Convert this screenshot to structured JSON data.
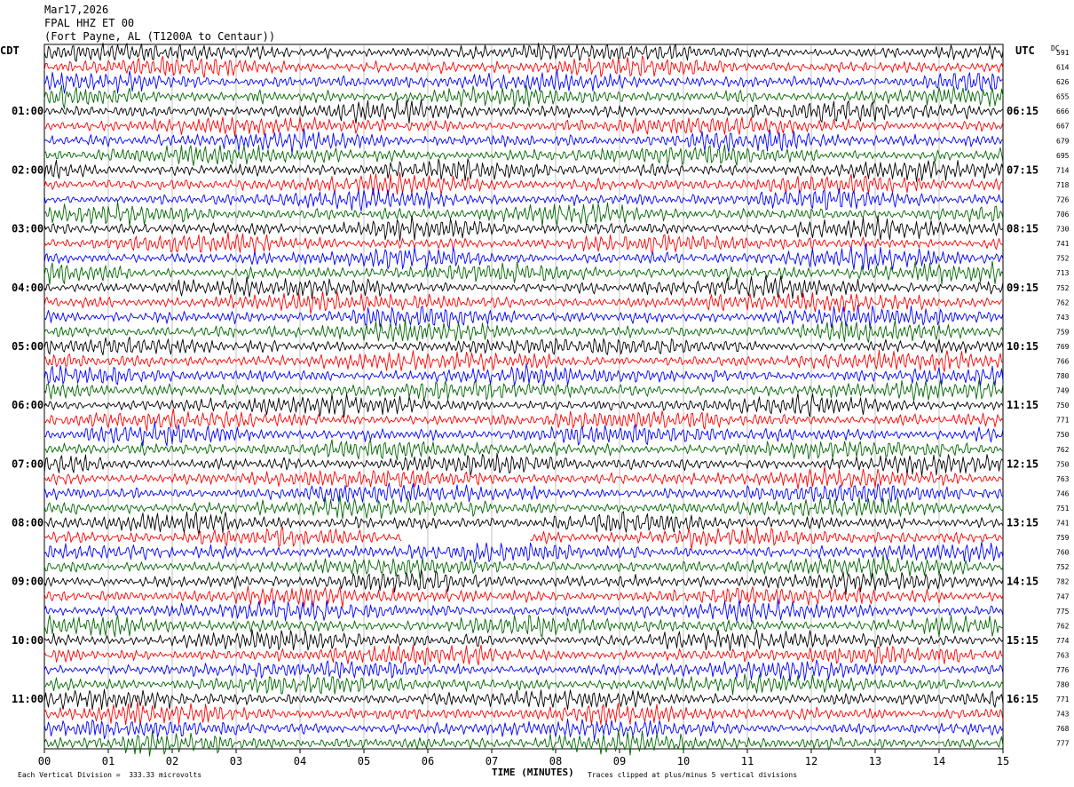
{
  "header": {
    "date": "Mar17,2026",
    "station": "FPAL HHZ ET 00",
    "location": "(Fort Payne, AL (T1200A to Centaur))"
  },
  "left_tz": "CDT",
  "right_tz": "UTC",
  "dc_label": "DC",
  "footer": {
    "scale": "Each Vertical Division =  333.33 microvolts",
    "clip": "Traces clipped at plus/minus 5 vertical divisions"
  },
  "chart_data": {
    "type": "line",
    "title": "",
    "xlabel": "TIME (MINUTES)",
    "xlim": [
      0,
      15
    ],
    "x_ticks": [
      "00",
      "01",
      "02",
      "03",
      "04",
      "05",
      "06",
      "07",
      "08",
      "09",
      "10",
      "11",
      "12",
      "13",
      "14",
      "15"
    ],
    "row_colors": [
      "#000000",
      "#ff0000",
      "#0000ff",
      "#006600"
    ],
    "left_time_labels": [
      {
        "row": 4,
        "label": "01:00"
      },
      {
        "row": 8,
        "label": "02:00"
      },
      {
        "row": 12,
        "label": "03:00"
      },
      {
        "row": 16,
        "label": "04:00"
      },
      {
        "row": 20,
        "label": "05:00"
      },
      {
        "row": 24,
        "label": "06:00"
      },
      {
        "row": 28,
        "label": "07:00"
      },
      {
        "row": 32,
        "label": "08:00"
      },
      {
        "row": 36,
        "label": "09:00"
      },
      {
        "row": 40,
        "label": "10:00"
      },
      {
        "row": 44,
        "label": "11:00"
      }
    ],
    "right_time_labels": [
      {
        "row": 4,
        "label": "06:15"
      },
      {
        "row": 8,
        "label": "07:15"
      },
      {
        "row": 12,
        "label": "08:15"
      },
      {
        "row": 16,
        "label": "09:15"
      },
      {
        "row": 20,
        "label": "10:15"
      },
      {
        "row": 24,
        "label": "11:15"
      },
      {
        "row": 28,
        "label": "12:15"
      },
      {
        "row": 32,
        "label": "13:15"
      },
      {
        "row": 36,
        "label": "14:15"
      },
      {
        "row": 40,
        "label": "15:15"
      },
      {
        "row": 44,
        "label": "16:15"
      }
    ],
    "dc_offsets": [
      591,
      614,
      626,
      655,
      666,
      667,
      679,
      695,
      714,
      718,
      726,
      706,
      730,
      741,
      752,
      713,
      752,
      762,
      743,
      759,
      769,
      766,
      780,
      749,
      750,
      771,
      750,
      762,
      750,
      763,
      746,
      751,
      741,
      759,
      760,
      752,
      782,
      747,
      775,
      762,
      774,
      763,
      776,
      780,
      771,
      743,
      768,
      777
    ],
    "gap": {
      "row": 33,
      "from_min": 5.6,
      "to_min": 7.6
    }
  }
}
